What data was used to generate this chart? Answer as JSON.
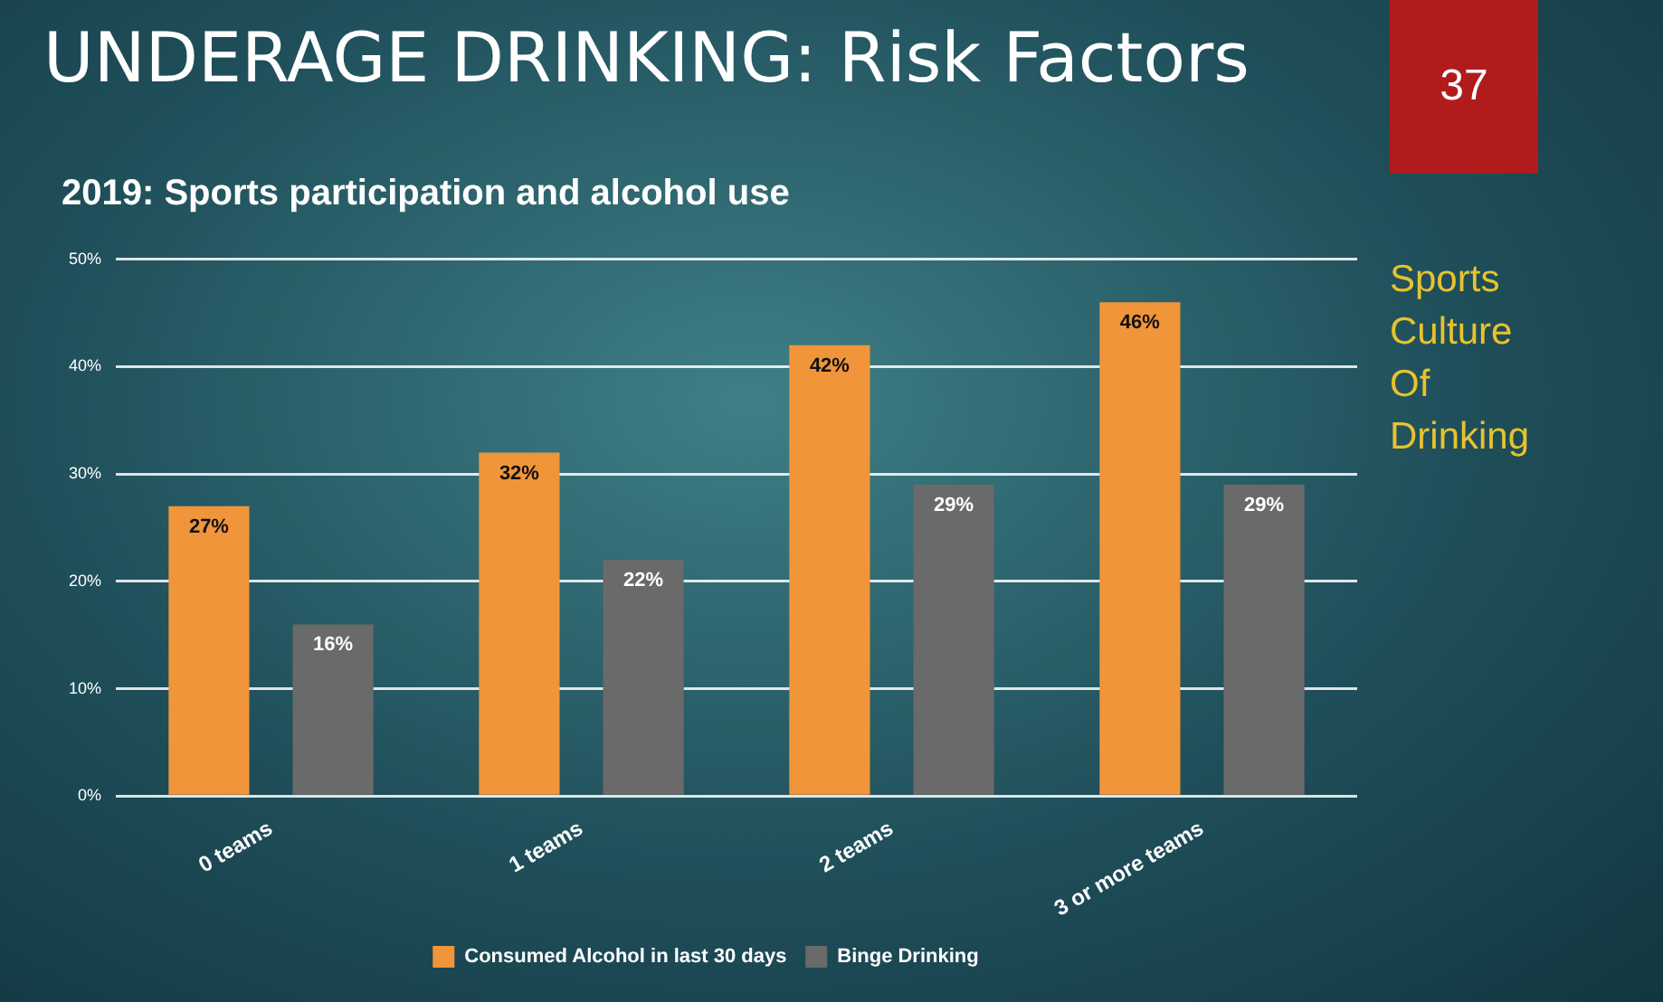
{
  "chart_data": {
    "type": "bar",
    "title": "UNDERAGE DRINKING: Risk Factors",
    "subtitle": "2019: Sports participation and alcohol use",
    "categories": [
      "0 teams",
      "1 teams",
      "2 teams",
      "3 or more teams"
    ],
    "series": [
      {
        "name": "Consumed Alcohol in last 30 days",
        "color": "#f0953a",
        "values": [
          27,
          32,
          42,
          46
        ],
        "value_labels": [
          "27%",
          "32%",
          "42%",
          "46%"
        ]
      },
      {
        "name": "Binge Drinking",
        "color": "#6a6a6a",
        "values": [
          16,
          22,
          29,
          29
        ],
        "value_labels": [
          "16%",
          "22%",
          "29%",
          "29%"
        ]
      }
    ],
    "ylim": [
      0,
      50
    ],
    "yticks": [
      {
        "value": 0,
        "label": "0%"
      },
      {
        "value": 10,
        "label": "10%"
      },
      {
        "value": 20,
        "label": "20%"
      },
      {
        "value": 30,
        "label": "30%"
      },
      {
        "value": 40,
        "label": "40%"
      },
      {
        "value": 50,
        "label": "50%"
      }
    ],
    "grid": "y",
    "legend": "bottom",
    "annotations": [
      "37",
      "Sports Culture Of Drinking"
    ]
  }
}
